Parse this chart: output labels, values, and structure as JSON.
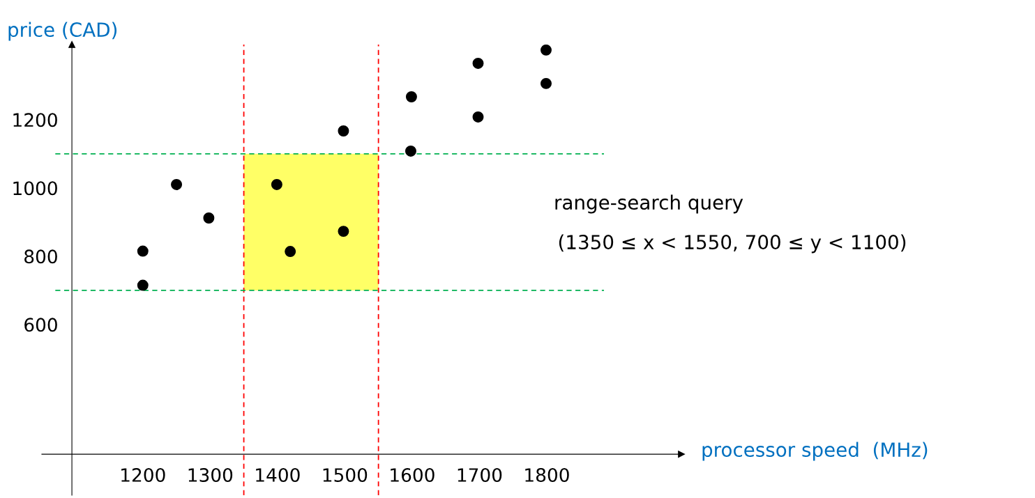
{
  "chart_data": {
    "type": "scatter",
    "xlabel": "processor speed  (MHz)",
    "ylabel": "price (CAD)",
    "x": [
      1200,
      1200,
      1250,
      1298,
      1399,
      1419,
      1498,
      1498,
      1599,
      1598,
      1698,
      1698,
      1799,
      1799
    ],
    "series": [
      {
        "color": "#000000",
        "values": [
          815,
          715,
          1010,
          912,
          1010,
          814,
          873,
          1167,
          1267,
          1108,
          1365,
          1208,
          1404,
          1306
        ]
      }
    ],
    "marker": "circle",
    "xlim": [
      1050,
      2000
    ],
    "ylim": [
      100,
      1420
    ],
    "xticks": [
      1200,
      1300,
      1400,
      1500,
      1600,
      1700,
      1800
    ],
    "yticks": [
      600,
      800,
      1000,
      1200
    ],
    "ref_lines": [
      {
        "axis": "x",
        "value": 1350,
        "color": "#ff0000",
        "line_style": "dashed"
      },
      {
        "axis": "x",
        "value": 1550,
        "color": "#ff0000",
        "line_style": "dashed"
      },
      {
        "axis": "y",
        "value": 700,
        "color": "#00b050",
        "line_style": "dashed"
      },
      {
        "axis": "y",
        "value": 1100,
        "color": "#00b050",
        "line_style": "dashed"
      }
    ],
    "bands": [
      {
        "axis": "x",
        "from": 1350,
        "to": 1550,
        "color": "#ffff66"
      }
    ],
    "annotations": [
      "range-search query",
      "(1350 ≤ x < 1550, 700 ≤ y < 1100)"
    ],
    "grid": false
  }
}
